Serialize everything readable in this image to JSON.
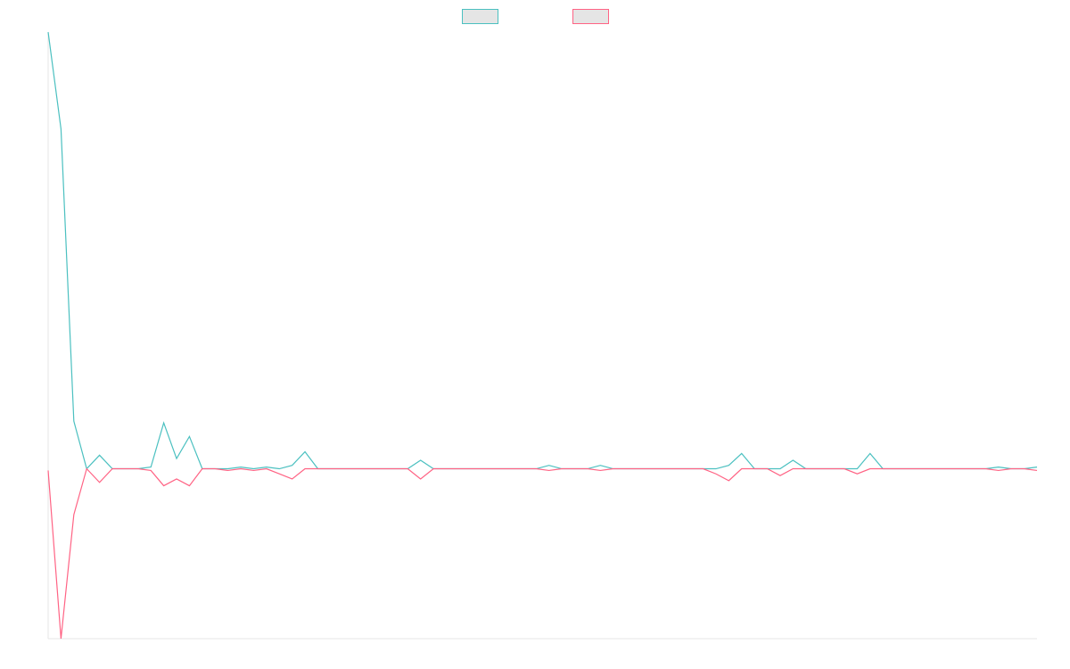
{
  "chart_data": {
    "type": "line",
    "x": [
      0,
      1,
      2,
      3,
      4,
      5,
      6,
      7,
      8,
      9,
      10,
      11,
      12,
      13,
      14,
      15,
      16,
      17,
      18,
      19,
      20,
      21,
      22,
      23,
      24,
      25,
      26,
      27,
      28,
      29,
      30,
      31,
      32,
      33,
      34,
      35,
      36,
      37,
      38,
      39,
      40,
      41,
      42,
      43,
      44,
      45,
      46,
      47,
      48,
      49,
      50,
      51,
      52,
      53,
      54,
      55,
      56,
      57,
      58,
      59,
      60,
      61,
      62,
      63,
      64,
      65,
      66,
      67,
      68,
      69,
      70,
      71,
      72,
      73,
      74,
      75,
      76,
      77
    ],
    "ylim": [
      -100,
      255
    ],
    "grid": false,
    "legend_position": "top-center",
    "series": [
      {
        "color": "#4bc0c0",
        "fill": "#e5e5e5",
        "values": [
          257,
          200,
          28,
          0,
          8,
          0,
          0,
          0,
          1,
          27,
          6,
          19,
          0,
          0,
          0,
          1,
          0,
          1,
          0,
          2,
          10,
          0,
          0,
          0,
          0,
          0,
          0,
          0,
          0,
          5,
          0,
          0,
          0,
          0,
          0,
          0,
          0,
          0,
          0,
          2,
          0,
          0,
          0,
          2,
          0,
          0,
          0,
          0,
          0,
          0,
          0,
          0,
          0,
          2,
          9,
          0,
          0,
          0,
          5,
          0,
          0,
          0,
          0,
          0,
          9,
          0,
          0,
          0,
          0,
          0,
          0,
          0,
          0,
          0,
          1,
          0,
          0,
          1
        ]
      },
      {
        "color": "#ff6384",
        "fill": "#e5e5e5",
        "values": [
          -1,
          -100,
          -27,
          0,
          -8,
          0,
          0,
          0,
          -1,
          -10,
          -6,
          -10,
          0,
          0,
          -1,
          0,
          -1,
          0,
          -3,
          -6,
          0,
          0,
          0,
          0,
          0,
          0,
          0,
          0,
          0,
          -6,
          0,
          0,
          0,
          0,
          0,
          0,
          0,
          0,
          0,
          -1,
          0,
          0,
          0,
          -1,
          0,
          0,
          0,
          0,
          0,
          0,
          0,
          0,
          -3,
          -7,
          0,
          0,
          0,
          -4,
          0,
          0,
          0,
          0,
          0,
          -3,
          0,
          0,
          0,
          0,
          0,
          0,
          0,
          0,
          0,
          0,
          -1,
          0,
          0,
          -1
        ]
      }
    ]
  }
}
